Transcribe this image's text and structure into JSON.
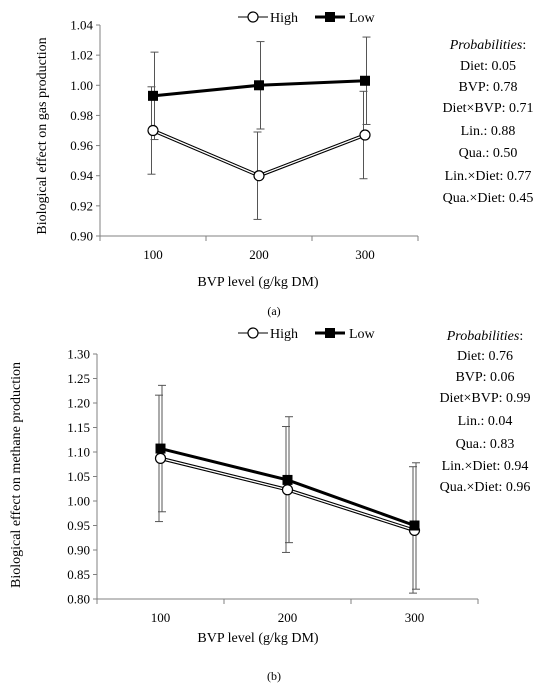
{
  "chart_data": [
    {
      "type": "line",
      "panel_label": "(a)",
      "xlabel": "BVP level (g/kg DM)",
      "ylabel": "Biological effect on gas production",
      "categories": [
        "100",
        "200",
        "300"
      ],
      "ylim": [
        0.9,
        1.04
      ],
      "yticks": [
        "0.90",
        "0.92",
        "0.94",
        "0.96",
        "0.98",
        "1.00",
        "1.02",
        "1.04"
      ],
      "legend_position": "top",
      "grid": false,
      "series": [
        {
          "name": "High",
          "marker": "open-circle",
          "values": [
            0.97,
            0.94,
            0.967
          ],
          "err_low": [
            0.941,
            0.911,
            0.938
          ],
          "err_high": [
            0.999,
            0.969,
            0.996
          ]
        },
        {
          "name": "Low",
          "marker": "filled-square",
          "values": [
            0.993,
            1.0,
            1.003
          ],
          "err_low": [
            0.964,
            0.971,
            0.974
          ],
          "err_high": [
            1.022,
            1.029,
            1.032
          ]
        }
      ],
      "probabilities_title": "Probabilities",
      "probabilities": [
        "Diet: 0.05",
        "BVP: 0.78",
        "Diet×BVP: 0.71",
        "Lin.: 0.88",
        "Qua.: 0.50",
        "Lin.×Diet: 0.77",
        "Qua.×Diet: 0.45"
      ]
    },
    {
      "type": "line",
      "panel_label": "(b)",
      "xlabel": "BVP level (g/kg DM)",
      "ylabel": "Biological effect on methane production",
      "categories": [
        "100",
        "200",
        "300"
      ],
      "ylim": [
        0.8,
        1.3
      ],
      "yticks": [
        "0.80",
        "0.85",
        "0.90",
        "0.95",
        "1.00",
        "1.05",
        "1.10",
        "1.15",
        "1.20",
        "1.25",
        "1.30"
      ],
      "legend_position": "top",
      "grid": false,
      "series": [
        {
          "name": "High",
          "marker": "open-circle",
          "values": [
            1.087,
            1.023,
            0.94
          ],
          "err_low": [
            0.958,
            0.895,
            0.812
          ],
          "err_high": [
            1.216,
            1.152,
            1.07
          ]
        },
        {
          "name": "Low",
          "marker": "filled-square",
          "values": [
            1.107,
            1.043,
            0.95
          ],
          "err_low": [
            0.978,
            0.915,
            0.82
          ],
          "err_high": [
            1.236,
            1.172,
            1.078
          ]
        }
      ],
      "probabilities_title": "Probabilities",
      "probabilities": [
        "Diet: 0.76",
        "BVP: 0.06",
        "Diet×BVP: 0.99",
        "Lin.: 0.04",
        "Qua.: 0.83",
        "Lin.×Diet: 0.94",
        "Qua.×Diet: 0.96"
      ]
    }
  ]
}
